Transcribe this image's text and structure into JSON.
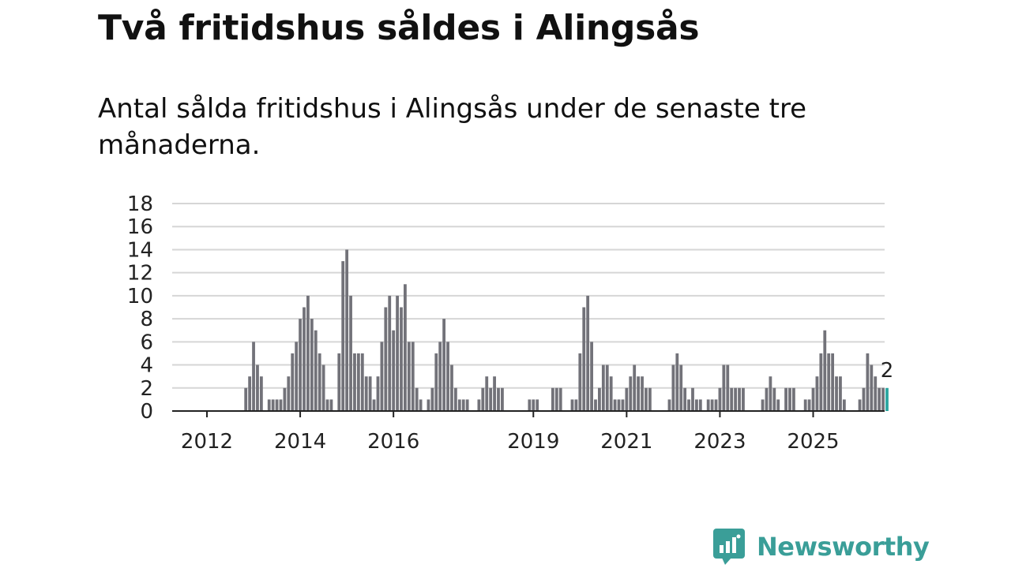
{
  "header": {
    "title": "Två fritidshus såldes i Alingsås",
    "subtitle": "Antal sålda fritidshus i Alingsås under de senaste tre månaderna."
  },
  "brand": {
    "name": "Newsworthy",
    "color": "#3a9e98",
    "icon": "chart-bubble-icon"
  },
  "colors": {
    "bar": "#727279",
    "highlight": "#2aa6a0",
    "grid": "#d6d6d6"
  },
  "chart_data": {
    "type": "bar",
    "title": "Antal sålda fritidshus i Alingsås",
    "xlabel": "",
    "ylabel": "",
    "ylim": [
      0,
      18
    ],
    "yticks": [
      "0",
      "2",
      "4",
      "6",
      "8",
      "10",
      "12",
      "14",
      "16",
      "18"
    ],
    "xticks": [
      {
        "label": "2012",
        "index": 0
      },
      {
        "label": "2014",
        "index": 24
      },
      {
        "label": "2016",
        "index": 48
      },
      {
        "label": "2019",
        "index": 84
      },
      {
        "label": "2021",
        "index": 108
      },
      {
        "label": "2023",
        "index": 132
      },
      {
        "label": "2025",
        "index": 156
      }
    ],
    "start": "2012-01",
    "values": [
      0,
      0,
      0,
      0,
      0,
      0,
      0,
      0,
      0,
      0,
      2,
      3,
      6,
      4,
      3,
      0,
      1,
      1,
      1,
      1,
      2,
      3,
      5,
      6,
      8,
      9,
      10,
      8,
      7,
      5,
      4,
      1,
      1,
      0,
      5,
      13,
      14,
      10,
      5,
      5,
      5,
      3,
      3,
      1,
      3,
      6,
      9,
      10,
      7,
      10,
      9,
      11,
      6,
      6,
      2,
      1,
      0,
      1,
      2,
      5,
      6,
      8,
      6,
      4,
      2,
      1,
      1,
      1,
      0,
      0,
      1,
      2,
      3,
      2,
      3,
      2,
      2,
      0,
      0,
      0,
      0,
      0,
      0,
      1,
      1,
      1,
      0,
      0,
      0,
      2,
      2,
      2,
      0,
      0,
      1,
      1,
      5,
      9,
      10,
      6,
      1,
      2,
      4,
      4,
      3,
      1,
      1,
      1,
      2,
      3,
      4,
      3,
      3,
      2,
      2,
      0,
      0,
      0,
      0,
      1,
      4,
      5,
      4,
      2,
      1,
      2,
      1,
      1,
      0,
      1,
      1,
      1,
      2,
      4,
      4,
      2,
      2,
      2,
      2,
      0,
      0,
      0,
      0,
      1,
      2,
      3,
      2,
      1,
      0,
      2,
      2,
      2,
      0,
      0,
      1,
      1,
      2,
      3,
      5,
      7,
      5,
      5,
      3,
      3,
      1,
      0,
      0,
      0,
      1,
      2,
      5,
      4,
      3,
      2,
      2,
      2
    ],
    "highlight_last": true,
    "last_label": "2"
  }
}
